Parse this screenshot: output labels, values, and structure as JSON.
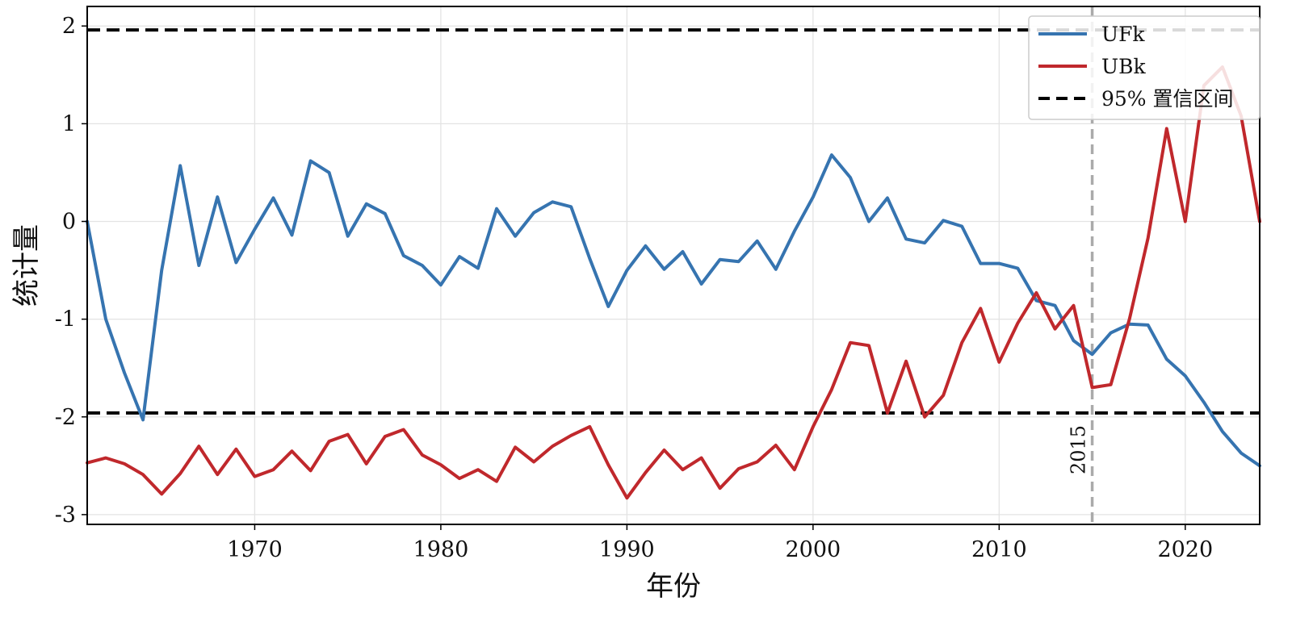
{
  "chart_data": {
    "type": "line",
    "xlabel": "年份",
    "ylabel": "统计量",
    "xlim": [
      1961,
      2024
    ],
    "ylim": [
      -3.1,
      2.2
    ],
    "xticks": [
      1970,
      1980,
      1990,
      2000,
      2010,
      2020
    ],
    "yticks": [
      -3,
      -2,
      -1,
      0,
      1,
      2
    ],
    "ytick_labels": [
      "-3",
      "-2",
      "-1",
      "0",
      "1",
      "2"
    ],
    "grid": true,
    "legend_position": "top-right",
    "colors": {
      "UFk": "#3674b0",
      "UBk": "#c0282c",
      "confidence": "#000000",
      "marker_line": "#aaaaaa"
    },
    "legend": {
      "ufk": "UFk",
      "ubk": "UBk",
      "ci": "95% 置信区间"
    },
    "confidence_level": [
      -1.96,
      1.96
    ],
    "vertical_marker": {
      "x": 2015,
      "label": "2015"
    },
    "x": [
      1961,
      1962,
      1963,
      1964,
      1965,
      1966,
      1967,
      1968,
      1969,
      1970,
      1971,
      1972,
      1973,
      1974,
      1975,
      1976,
      1977,
      1978,
      1979,
      1980,
      1981,
      1982,
      1983,
      1984,
      1985,
      1986,
      1987,
      1988,
      1989,
      1990,
      1991,
      1992,
      1993,
      1994,
      1995,
      1996,
      1997,
      1998,
      1999,
      2000,
      2001,
      2002,
      2003,
      2004,
      2005,
      2006,
      2007,
      2008,
      2009,
      2010,
      2011,
      2012,
      2013,
      2014,
      2015,
      2016,
      2017,
      2018,
      2019,
      2020,
      2021,
      2022,
      2023,
      2024
    ],
    "series": [
      {
        "name": "UFk",
        "values": [
          0.0,
          -1.0,
          -1.55,
          -2.03,
          -0.5,
          0.57,
          -0.45,
          0.25,
          -0.42,
          -0.08,
          0.24,
          -0.14,
          0.62,
          0.5,
          -0.15,
          0.18,
          0.08,
          -0.35,
          -0.45,
          -0.65,
          -0.36,
          -0.48,
          0.13,
          -0.15,
          0.09,
          0.2,
          0.15,
          -0.38,
          -0.87,
          -0.5,
          -0.25,
          -0.49,
          -0.31,
          -0.64,
          -0.39,
          -0.41,
          -0.2,
          -0.49,
          -0.1,
          0.25,
          0.68,
          0.45,
          0.0,
          0.24,
          -0.18,
          -0.22,
          0.01,
          -0.05,
          -0.43,
          -0.43,
          -0.48,
          -0.81,
          -0.86,
          -1.22,
          -1.36,
          -1.14,
          -1.05,
          -1.06,
          -1.41,
          -1.58,
          -1.85,
          -2.15,
          -2.37,
          -2.5
        ]
      },
      {
        "name": "UBk",
        "values": [
          -2.47,
          -2.42,
          -2.48,
          -2.59,
          -2.79,
          -2.58,
          -2.3,
          -2.59,
          -2.33,
          -2.61,
          -2.54,
          -2.35,
          -2.55,
          -2.25,
          -2.18,
          -2.48,
          -2.2,
          -2.13,
          -2.39,
          -2.49,
          -2.63,
          -2.54,
          -2.66,
          -2.31,
          -2.46,
          -2.3,
          -2.19,
          -2.1,
          -2.49,
          -2.83,
          -2.57,
          -2.34,
          -2.54,
          -2.42,
          -2.73,
          -2.53,
          -2.46,
          -2.29,
          -2.54,
          -2.1,
          -1.72,
          -1.24,
          -1.27,
          -1.96,
          -1.43,
          -2.0,
          -1.78,
          -1.24,
          -0.89,
          -1.44,
          -1.04,
          -0.73,
          -1.1,
          -0.86,
          -1.7,
          -1.67,
          -1.0,
          -0.17,
          0.95,
          0.0,
          1.39,
          1.58,
          1.08,
          0.0
        ]
      }
    ]
  }
}
